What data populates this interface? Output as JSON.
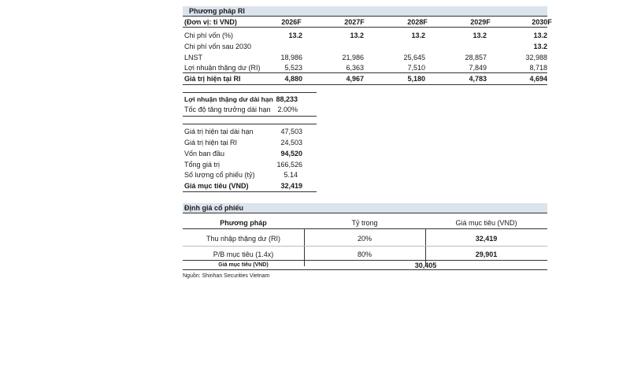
{
  "ri_table": {
    "title": "Phương pháp RI",
    "unit_label": "(Đơn vị: tỉ VND)",
    "years": [
      "2026F",
      "2027F",
      "2028F",
      "2029F",
      "2030F"
    ],
    "rows": [
      {
        "label": "Chi phí vốn (%)",
        "bold": false,
        "values": [
          "13.2",
          "13.2",
          "13.2",
          "13.2",
          "13.2"
        ]
      },
      {
        "label": "Chi phí vốn sau 2030",
        "bold": false,
        "values": [
          "",
          "",
          "",
          "",
          "13.2"
        ]
      },
      {
        "label": "LNST",
        "bold": false,
        "values": [
          "18,986",
          "21,986",
          "25,645",
          "28,857",
          "32,988"
        ]
      },
      {
        "label": "Lợi nhuận thặng dư (RI)",
        "bold": false,
        "values": [
          "5,523",
          "6,363",
          "7,510",
          "7,849",
          "8,718"
        ]
      },
      {
        "label": "Giá trị hiện tại RI",
        "bold": true,
        "values": [
          "4,880",
          "4,967",
          "5,180",
          "4,783",
          "4,694"
        ]
      }
    ]
  },
  "long_term": {
    "rows": [
      {
        "label": "Lợi nhuận thặng dư dài hạn",
        "value": "88,233",
        "bold": true
      },
      {
        "label": "Tốc độ tăng trưởng dài hạn",
        "value": "2.00%",
        "bold": false
      }
    ]
  },
  "value_table": {
    "rows": [
      {
        "label": "Giá trị hiện tại dài hạn",
        "value": "47,503",
        "bold": false
      },
      {
        "label": "Giá trị hiện tại RI",
        "value": "24,503",
        "bold": false
      },
      {
        "label": "Vốn ban đầu",
        "value": "94,520",
        "bold": true
      },
      {
        "label": "Tổng giá trị",
        "value": "166,526",
        "bold": false
      },
      {
        "label": "Số lượng cổ phiếu (tỷ)",
        "value": "5.14",
        "bold": false
      },
      {
        "label": "Giá mục tiêu (VND)",
        "value": "32,419",
        "bold": true
      }
    ]
  },
  "valuation": {
    "title": "Định giá cổ phiếu",
    "headers": [
      "Phương pháp",
      "Tỷ trọng",
      "Giá mục tiêu (VND)"
    ],
    "rows": [
      {
        "method": "Thu nhập thặng dư (RI)",
        "weight": "20%",
        "target": "32,419"
      },
      {
        "method": "P/B mục tiêu (1.4x)",
        "weight": "80%",
        "target": "29,901"
      }
    ],
    "total_label": "Giá mục tiêu (VND)",
    "total_value": "30,405"
  },
  "source": "Nguồn: Shinhan Securities Vietnam"
}
